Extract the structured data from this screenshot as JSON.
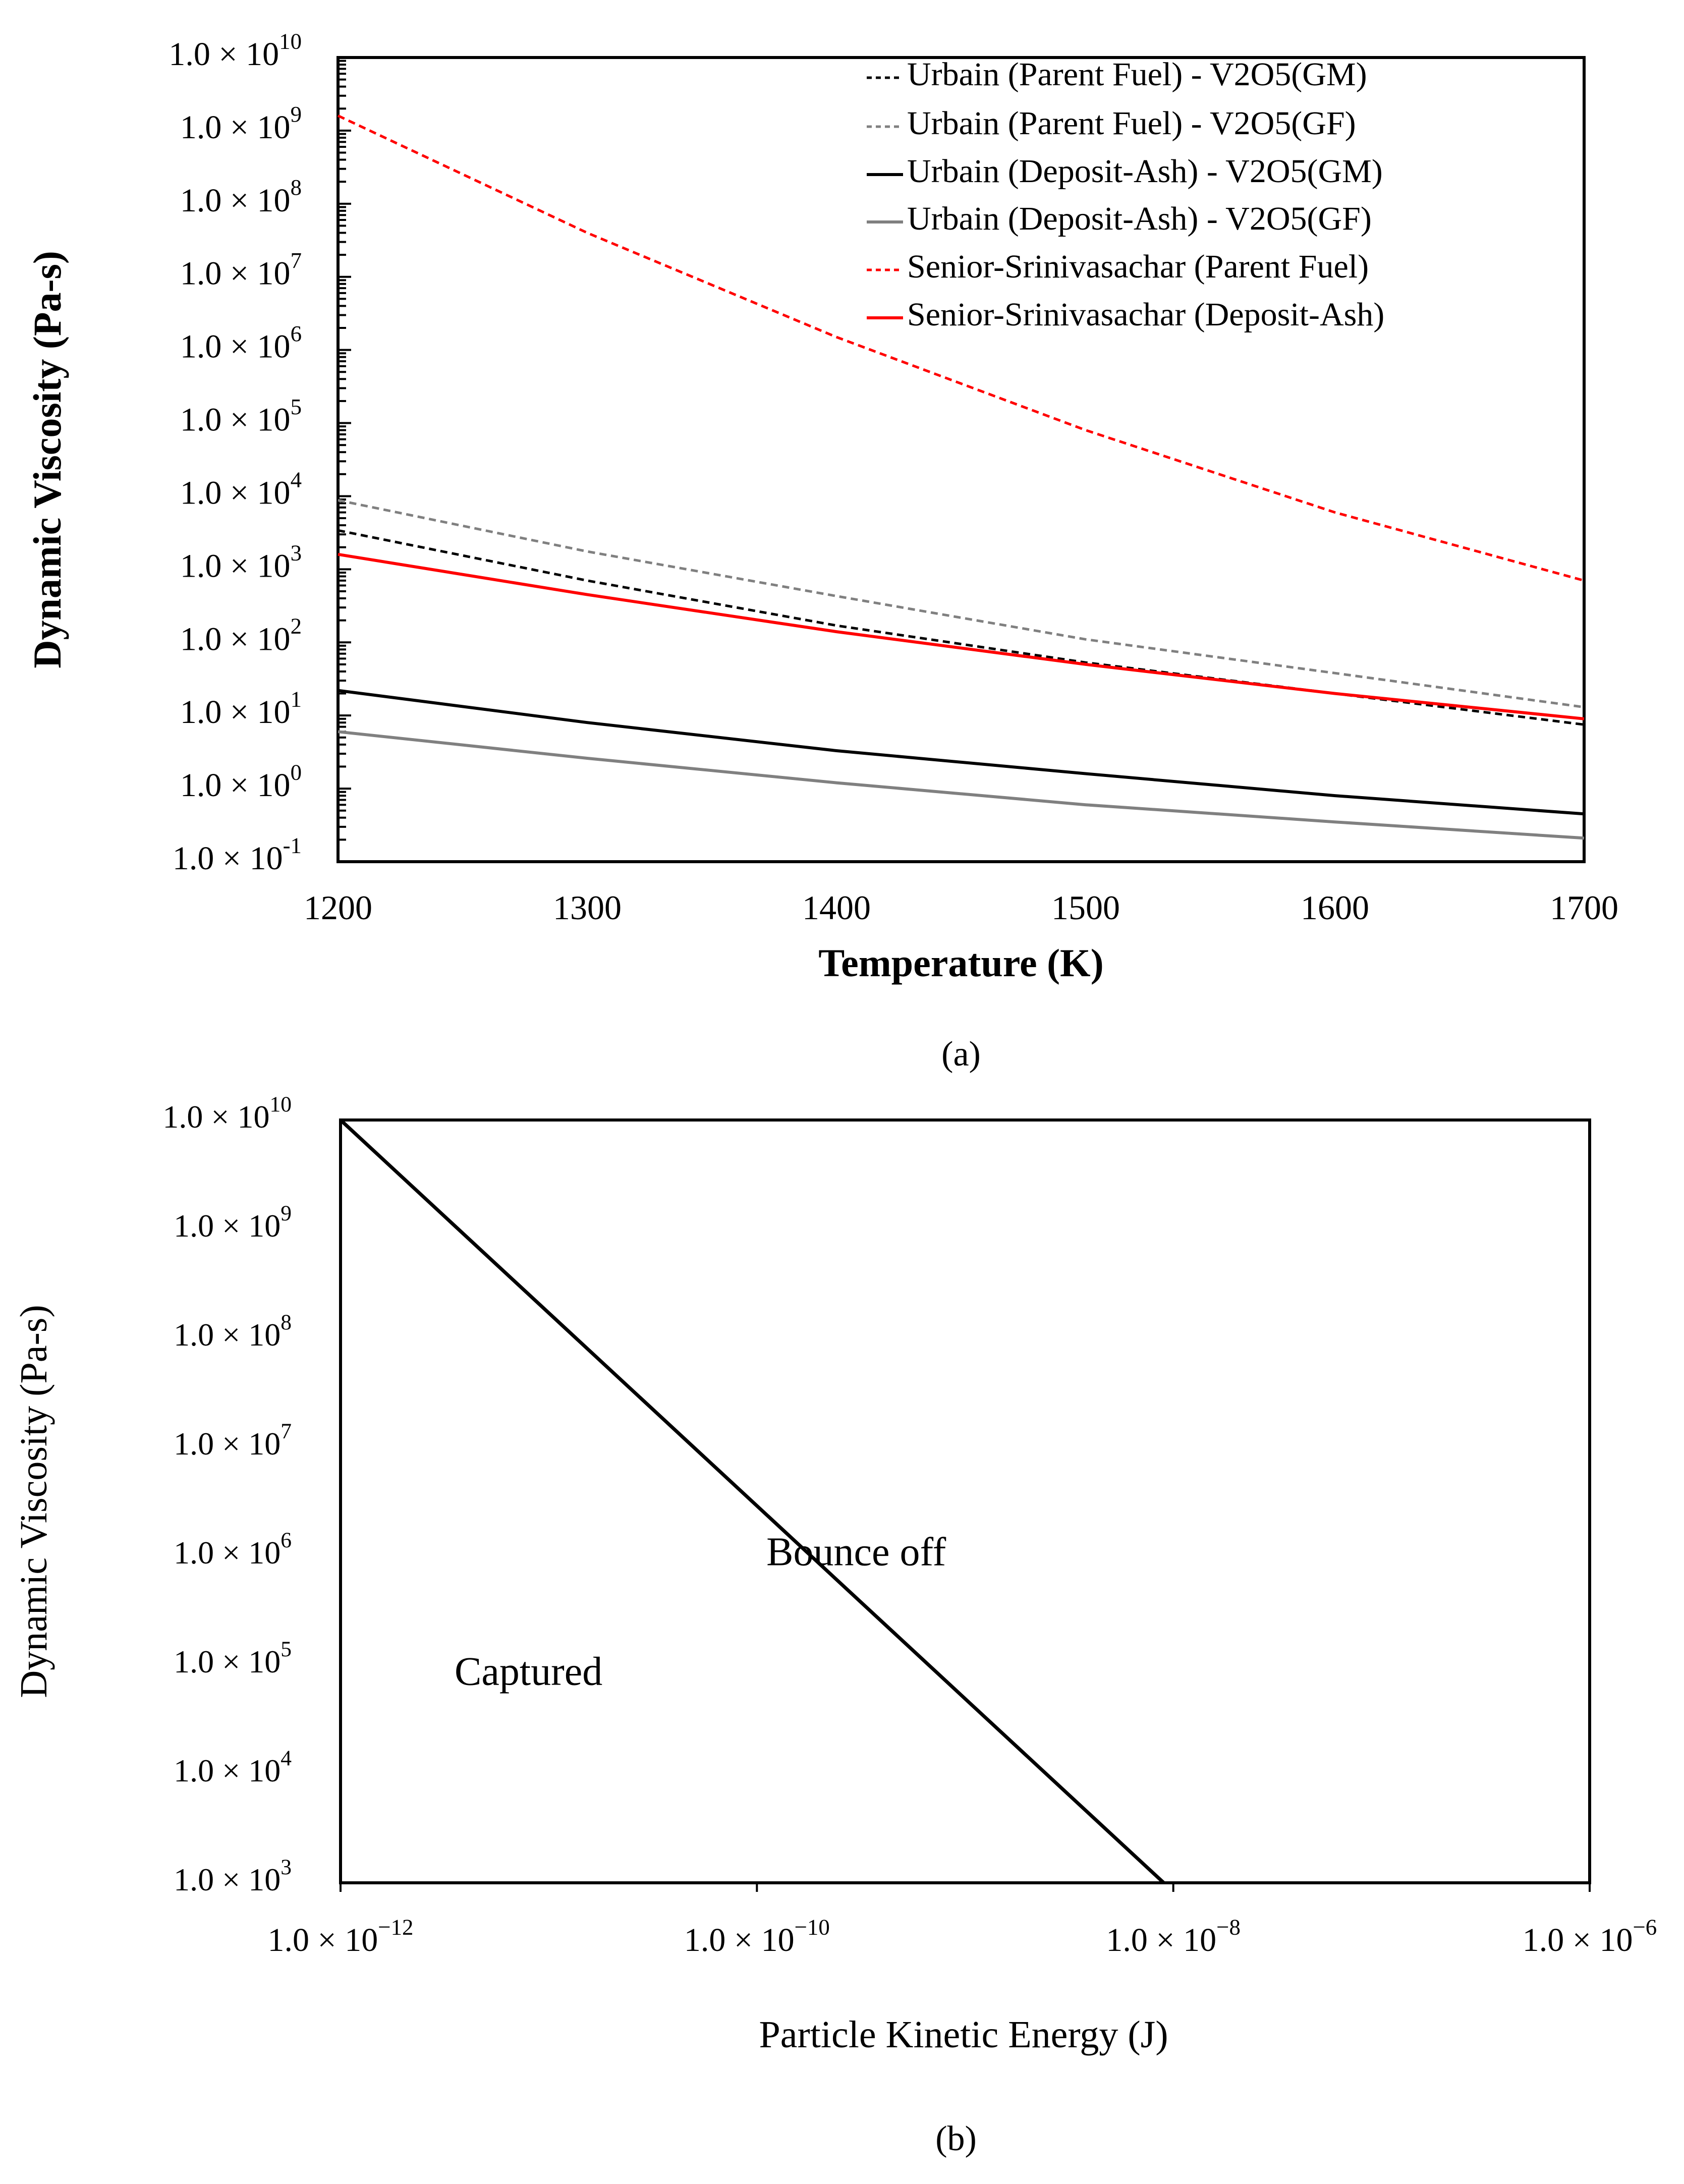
{
  "chart_data": [
    {
      "panel_label": "(a)",
      "type": "line",
      "xlabel": "Temperature (K)",
      "ylabel": "Dynamic Viscosity (Pa-s)",
      "xlim": [
        1200,
        1700
      ],
      "ylim_log10": [
        -1,
        10
      ],
      "x_ticks": [
        "1200",
        "1300",
        "1400",
        "1500",
        "1600",
        "1700"
      ],
      "y_ticks": [
        {
          "mant": "1.0 × 10",
          "exp": "-1"
        },
        {
          "mant": "1.0 × 10",
          "exp": "0"
        },
        {
          "mant": "1.0 × 10",
          "exp": "1"
        },
        {
          "mant": "1.0 × 10",
          "exp": "2"
        },
        {
          "mant": "1.0 × 10",
          "exp": "3"
        },
        {
          "mant": "1.0 × 10",
          "exp": "4"
        },
        {
          "mant": "1.0 × 10",
          "exp": "5"
        },
        {
          "mant": "1.0 × 10",
          "exp": "6"
        },
        {
          "mant": "1.0 × 10",
          "exp": "7"
        },
        {
          "mant": "1.0 × 10",
          "exp": "8"
        },
        {
          "mant": "1.0 × 10",
          "exp": "9"
        },
        {
          "mant": "1.0 × 10",
          "exp": "10"
        }
      ],
      "legend_position": "top-right",
      "x": [
        1200,
        1300,
        1400,
        1500,
        1600,
        1700
      ],
      "series": [
        {
          "name": "Urbain (Parent Fuel) - V2O5(GM)",
          "color": "#000000",
          "dash": true,
          "values": [
            3400,
            700,
            170,
            53,
            20,
            7.5
          ]
        },
        {
          "name": "Urbain (Parent Fuel) - V2O5(GF)",
          "color": "#808080",
          "dash": true,
          "values": [
            8800,
            1750,
            430,
            110,
            38,
            13
          ]
        },
        {
          "name": "Urbain (Deposit-Ash) - V2O5(GM)",
          "color": "#000000",
          "dash": false,
          "values": [
            22,
            8,
            3.3,
            1.6,
            0.8,
            0.45
          ]
        },
        {
          "name": "Urbain (Deposit-Ash) - V2O5(GF)",
          "color": "#808080",
          "dash": false,
          "values": [
            6,
            2.6,
            1.2,
            0.6,
            0.35,
            0.21
          ]
        },
        {
          "name": "Senior-Srinivasachar (Parent Fuel)",
          "color": "#ff0000",
          "dash": true,
          "values": [
            1600000000,
            40000000,
            1500000,
            80000,
            6000,
            700
          ]
        },
        {
          "name": "Senior-Srinivasachar (Deposit-Ash)",
          "color": "#ff0000",
          "dash": false,
          "values": [
            1600,
            450,
            140,
            50,
            20,
            9
          ]
        }
      ]
    },
    {
      "panel_label": "(b)",
      "type": "line",
      "xlabel": "Particle Kinetic Energy (J)",
      "ylabel": "Dynamic Viscosity (Pa-s)",
      "xlim_log10": [
        -12,
        -6
      ],
      "ylim_log10": [
        3,
        10
      ],
      "x_ticks": [
        {
          "mant": "1.0 × 10",
          "exp": "−12"
        },
        {
          "mant": "1.0 × 10",
          "exp": "−10"
        },
        {
          "mant": "1.0 × 10",
          "exp": "−8"
        },
        {
          "mant": "1.0 × 10",
          "exp": "−6"
        }
      ],
      "y_ticks": [
        {
          "mant": "1.0 × 10",
          "exp": "3"
        },
        {
          "mant": "1.0 × 10",
          "exp": "4"
        },
        {
          "mant": "1.0 × 10",
          "exp": "5"
        },
        {
          "mant": "1.0 × 10",
          "exp": "6"
        },
        {
          "mant": "1.0 × 10",
          "exp": "7"
        },
        {
          "mant": "1.0 × 10",
          "exp": "8"
        },
        {
          "mant": "1.0 × 10",
          "exp": "9"
        },
        {
          "mant": "1.0 × 10",
          "exp": "10"
        }
      ],
      "boundary": {
        "name": "capture boundary",
        "x": [
          1e-12,
          9e-09
        ],
        "values": [
          10000000000.0,
          1000.0
        ]
      },
      "region_labels": [
        {
          "text": "Bounce off",
          "x": 3e-10,
          "y": 1000000.0
        },
        {
          "text": "Captured",
          "x": 8e-12,
          "y": 80000.0
        }
      ]
    }
  ]
}
